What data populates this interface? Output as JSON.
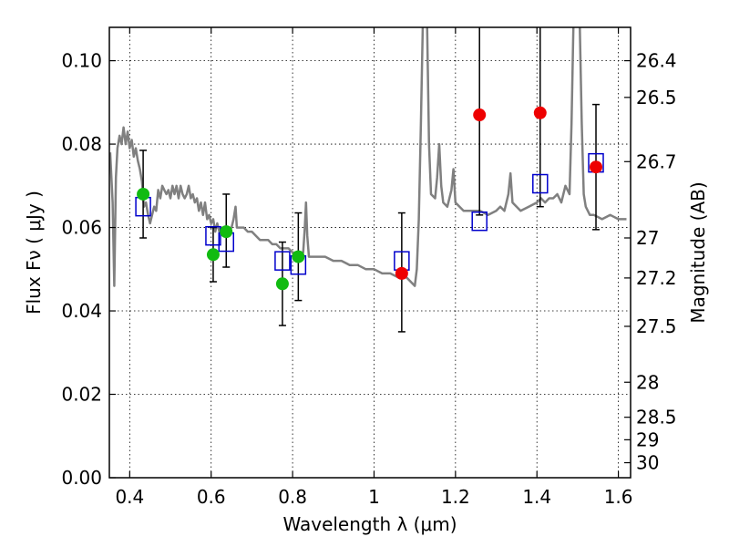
{
  "chart_data": {
    "type": "scatter",
    "xlabel": "Wavelength  λ (μm)",
    "ylabel": "Flux  Fν ( μJy )",
    "y2label": "Magnitude (AB)",
    "xlim": [
      0.35,
      1.63
    ],
    "ylim": [
      0.0,
      0.108
    ],
    "grid": true,
    "x_ticks": [
      0.4,
      0.6,
      0.8,
      1.0,
      1.2,
      1.4,
      1.6
    ],
    "x_tick_labels": [
      "0.4",
      "0.6",
      "0.8",
      "1",
      "1.2",
      "1.4",
      "1.6"
    ],
    "y_ticks": [
      0.0,
      0.02,
      0.04,
      0.06,
      0.08,
      0.1
    ],
    "y_tick_labels": [
      "0.00",
      "0.02",
      "0.04",
      "0.06",
      "0.08",
      "0.10"
    ],
    "mag_ticks": [
      {
        "label": "26.4",
        "flux": 0.1
      },
      {
        "label": "26.5",
        "flux": 0.0912
      },
      {
        "label": "26.7",
        "flux": 0.0758
      },
      {
        "label": "27",
        "flux": 0.0575
      },
      {
        "label": "27.2",
        "flux": 0.0479
      },
      {
        "label": "27.5",
        "flux": 0.0363
      },
      {
        "label": "28",
        "flux": 0.0229
      },
      {
        "label": "28.5",
        "flux": 0.0145
      },
      {
        "label": "29",
        "flux": 0.0091
      },
      {
        "label": "30",
        "flux": 0.0036
      }
    ],
    "colors": {
      "model": "#808080",
      "green": "#11bb11",
      "red": "#ee0000",
      "box": "#0000cc",
      "errorbar": "#000000"
    },
    "model_spectrum": [
      [
        0.352,
        0.078
      ],
      [
        0.358,
        0.066
      ],
      [
        0.362,
        0.046
      ],
      [
        0.366,
        0.072
      ],
      [
        0.37,
        0.079
      ],
      [
        0.375,
        0.082
      ],
      [
        0.38,
        0.08
      ],
      [
        0.385,
        0.084
      ],
      [
        0.39,
        0.08
      ],
      [
        0.395,
        0.083
      ],
      [
        0.4,
        0.079
      ],
      [
        0.405,
        0.081
      ],
      [
        0.41,
        0.077
      ],
      [
        0.415,
        0.079
      ],
      [
        0.42,
        0.076
      ],
      [
        0.425,
        0.074
      ],
      [
        0.43,
        0.071
      ],
      [
        0.435,
        0.065
      ],
      [
        0.44,
        0.066
      ],
      [
        0.445,
        0.063
      ],
      [
        0.45,
        0.061
      ],
      [
        0.455,
        0.063
      ],
      [
        0.46,
        0.065
      ],
      [
        0.465,
        0.064
      ],
      [
        0.47,
        0.069
      ],
      [
        0.475,
        0.067
      ],
      [
        0.48,
        0.07
      ],
      [
        0.485,
        0.069
      ],
      [
        0.49,
        0.068
      ],
      [
        0.495,
        0.069
      ],
      [
        0.5,
        0.067
      ],
      [
        0.505,
        0.07
      ],
      [
        0.51,
        0.068
      ],
      [
        0.515,
        0.07
      ],
      [
        0.52,
        0.067
      ],
      [
        0.525,
        0.07
      ],
      [
        0.53,
        0.068
      ],
      [
        0.535,
        0.067
      ],
      [
        0.54,
        0.068
      ],
      [
        0.545,
        0.07
      ],
      [
        0.55,
        0.067
      ],
      [
        0.555,
        0.068
      ],
      [
        0.56,
        0.066
      ],
      [
        0.565,
        0.067
      ],
      [
        0.57,
        0.064
      ],
      [
        0.575,
        0.066
      ],
      [
        0.58,
        0.063
      ],
      [
        0.585,
        0.066
      ],
      [
        0.59,
        0.062
      ],
      [
        0.595,
        0.063
      ],
      [
        0.6,
        0.061
      ],
      [
        0.605,
        0.062
      ],
      [
        0.61,
        0.059
      ],
      [
        0.615,
        0.061
      ],
      [
        0.62,
        0.059
      ],
      [
        0.625,
        0.06
      ],
      [
        0.63,
        0.058
      ],
      [
        0.64,
        0.059
      ],
      [
        0.65,
        0.06
      ],
      [
        0.655,
        0.062
      ],
      [
        0.66,
        0.065
      ],
      [
        0.663,
        0.06
      ],
      [
        0.67,
        0.06
      ],
      [
        0.68,
        0.06
      ],
      [
        0.69,
        0.059
      ],
      [
        0.7,
        0.059
      ],
      [
        0.71,
        0.058
      ],
      [
        0.72,
        0.057
      ],
      [
        0.73,
        0.057
      ],
      [
        0.74,
        0.057
      ],
      [
        0.75,
        0.056
      ],
      [
        0.76,
        0.056
      ],
      [
        0.77,
        0.055
      ],
      [
        0.78,
        0.055
      ],
      [
        0.79,
        0.055
      ],
      [
        0.8,
        0.054
      ],
      [
        0.81,
        0.054
      ],
      [
        0.82,
        0.054
      ],
      [
        0.826,
        0.054
      ],
      [
        0.83,
        0.06
      ],
      [
        0.833,
        0.066
      ],
      [
        0.836,
        0.058
      ],
      [
        0.84,
        0.053
      ],
      [
        0.86,
        0.053
      ],
      [
        0.88,
        0.053
      ],
      [
        0.9,
        0.052
      ],
      [
        0.92,
        0.052
      ],
      [
        0.94,
        0.051
      ],
      [
        0.96,
        0.051
      ],
      [
        0.98,
        0.05
      ],
      [
        1.0,
        0.05
      ],
      [
        1.02,
        0.049
      ],
      [
        1.04,
        0.049
      ],
      [
        1.06,
        0.048
      ],
      [
        1.08,
        0.048
      ],
      [
        1.09,
        0.047
      ],
      [
        1.1,
        0.046
      ],
      [
        1.105,
        0.05
      ],
      [
        1.11,
        0.062
      ],
      [
        1.115,
        0.085
      ],
      [
        1.12,
        0.11
      ],
      [
        1.13,
        0.11
      ],
      [
        1.135,
        0.08
      ],
      [
        1.14,
        0.068
      ],
      [
        1.15,
        0.067
      ],
      [
        1.155,
        0.072
      ],
      [
        1.16,
        0.08
      ],
      [
        1.165,
        0.07
      ],
      [
        1.17,
        0.066
      ],
      [
        1.18,
        0.065
      ],
      [
        1.19,
        0.069
      ],
      [
        1.195,
        0.074
      ],
      [
        1.2,
        0.066
      ],
      [
        1.21,
        0.065
      ],
      [
        1.22,
        0.064
      ],
      [
        1.23,
        0.064
      ],
      [
        1.24,
        0.064
      ],
      [
        1.26,
        0.064
      ],
      [
        1.28,
        0.063
      ],
      [
        1.3,
        0.064
      ],
      [
        1.31,
        0.065
      ],
      [
        1.32,
        0.064
      ],
      [
        1.33,
        0.068
      ],
      [
        1.335,
        0.073
      ],
      [
        1.34,
        0.066
      ],
      [
        1.35,
        0.065
      ],
      [
        1.36,
        0.064
      ],
      [
        1.38,
        0.065
      ],
      [
        1.4,
        0.066
      ],
      [
        1.41,
        0.067
      ],
      [
        1.42,
        0.066
      ],
      [
        1.43,
        0.067
      ],
      [
        1.44,
        0.067
      ],
      [
        1.45,
        0.068
      ],
      [
        1.46,
        0.066
      ],
      [
        1.47,
        0.07
      ],
      [
        1.48,
        0.068
      ],
      [
        1.485,
        0.085
      ],
      [
        1.49,
        0.11
      ],
      [
        1.505,
        0.11
      ],
      [
        1.51,
        0.085
      ],
      [
        1.515,
        0.068
      ],
      [
        1.52,
        0.065
      ],
      [
        1.53,
        0.063
      ],
      [
        1.54,
        0.063
      ],
      [
        1.56,
        0.062
      ],
      [
        1.58,
        0.063
      ],
      [
        1.6,
        0.062
      ],
      [
        1.62,
        0.062
      ]
    ],
    "observed": [
      {
        "x": 0.433,
        "y": 0.068,
        "yerr": [
          0.0575,
          0.0785
        ],
        "color": "green"
      },
      {
        "x": 0.605,
        "y": 0.0535,
        "yerr": [
          0.047,
          0.06
        ],
        "color": "green"
      },
      {
        "x": 0.637,
        "y": 0.059,
        "yerr": [
          0.0505,
          0.068
        ],
        "color": "green"
      },
      {
        "x": 0.775,
        "y": 0.0465,
        "yerr": [
          0.0365,
          0.0565
        ],
        "color": "green"
      },
      {
        "x": 0.814,
        "y": 0.053,
        "yerr": [
          0.0425,
          0.0635
        ],
        "color": "green"
      },
      {
        "x": 1.068,
        "y": 0.049,
        "yerr": [
          0.035,
          0.0635
        ],
        "color": "red"
      },
      {
        "x": 1.259,
        "y": 0.087,
        "yerr": [
          0.063,
          0.11
        ],
        "color": "red"
      },
      {
        "x": 1.408,
        "y": 0.0875,
        "yerr": [
          0.065,
          0.11
        ],
        "color": "red"
      },
      {
        "x": 1.545,
        "y": 0.0745,
        "yerr": [
          0.0595,
          0.0895
        ],
        "color": "red"
      }
    ],
    "model_photometry": [
      {
        "x": 0.433,
        "y": 0.065
      },
      {
        "x": 0.605,
        "y": 0.058
      },
      {
        "x": 0.637,
        "y": 0.0565
      },
      {
        "x": 0.775,
        "y": 0.052
      },
      {
        "x": 0.814,
        "y": 0.051
      },
      {
        "x": 1.068,
        "y": 0.052
      },
      {
        "x": 1.259,
        "y": 0.0615
      },
      {
        "x": 1.408,
        "y": 0.0705
      },
      {
        "x": 1.545,
        "y": 0.0755
      }
    ]
  }
}
